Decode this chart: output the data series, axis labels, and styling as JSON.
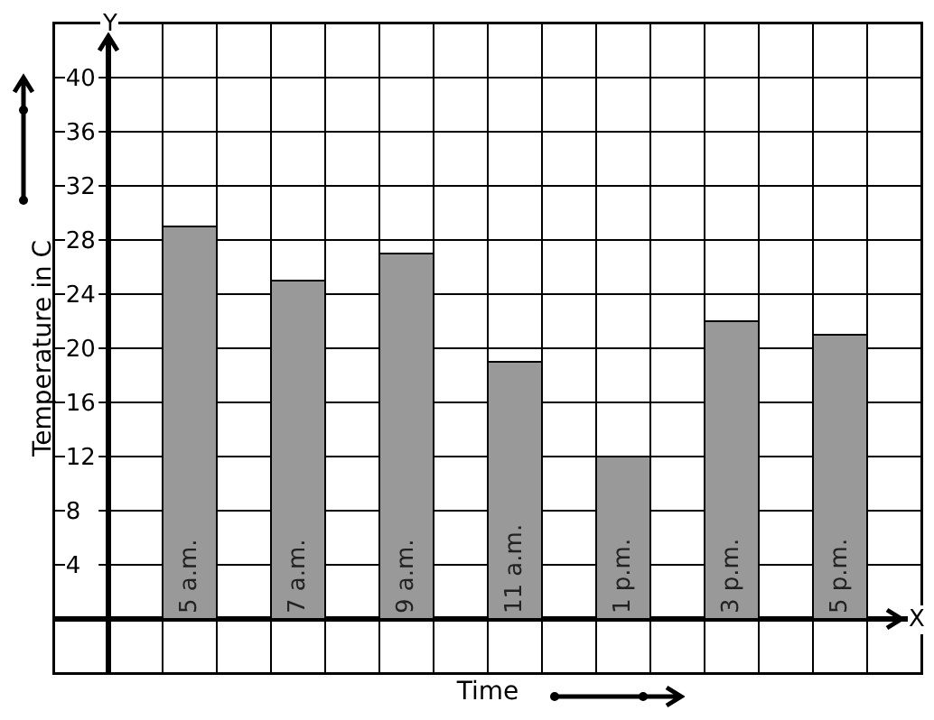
{
  "chart_data": {
    "type": "bar",
    "xlabel": "Time",
    "ylabel": "Temperature in C",
    "annotations": [
      "Y",
      "X"
    ],
    "categories": [
      "5 a.m.",
      "7 a.m.",
      "9 a.m.",
      "11 a.m.",
      "1 p.m.",
      "3 p.m.",
      "5 p.m."
    ],
    "values": [
      29,
      25,
      27,
      19,
      12,
      22,
      21
    ],
    "color": "#999999",
    "ylim": [
      -4,
      44
    ],
    "yticks": [
      4,
      8,
      12,
      16,
      20,
      24,
      28,
      32,
      36,
      40
    ],
    "grid": true
  }
}
